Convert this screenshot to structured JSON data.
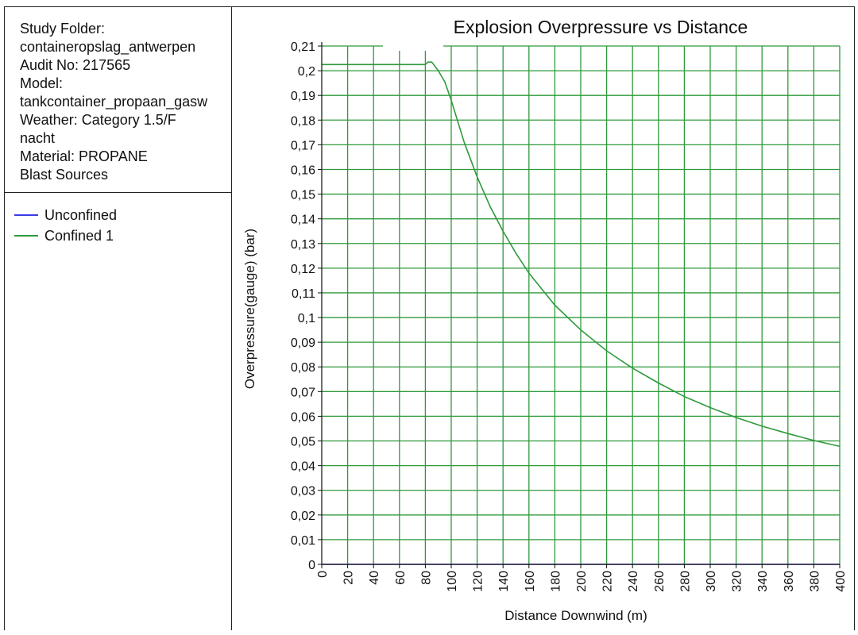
{
  "info": {
    "lines": [
      "Study Folder:",
      "containeropslag_antwerpen",
      "Audit No: 217565",
      "Model:",
      "tankcontainer_propaan_gasw",
      "Weather: Category 1.5/F",
      "nacht",
      "Material: PROPANE",
      "Blast Sources"
    ]
  },
  "legend": [
    {
      "label": "Unconfined",
      "color": "#3a3ae6"
    },
    {
      "label": "Confined 1",
      "color": "#2e9a3a"
    }
  ],
  "chart_data": {
    "type": "line",
    "title": "Explosion Overpressure vs Distance",
    "xlabel": "Distance Downwind (m)",
    "ylabel": "Overpressure(gauge) (bar)",
    "xlim": [
      0,
      400
    ],
    "ylim": [
      0,
      0.21
    ],
    "grid": true,
    "grid_color": "#2e9a3a",
    "xticks": [
      "0",
      "20",
      "40",
      "60",
      "80",
      "100",
      "120",
      "140",
      "160",
      "180",
      "200",
      "220",
      "240",
      "260",
      "280",
      "300",
      "320",
      "340",
      "360",
      "380",
      "400"
    ],
    "yticks": [
      "0",
      "0,01",
      "0,02",
      "0,03",
      "0,04",
      "0,05",
      "0,06",
      "0,07",
      "0,08",
      "0,09",
      "0,1",
      "0,11",
      "0,12",
      "0,13",
      "0,14",
      "0,15",
      "0,16",
      "0,17",
      "0,18",
      "0,19",
      "0,2",
      "0,21"
    ],
    "series": [
      {
        "name": "Unconfined",
        "color": "#3a3ae6",
        "x": [
          0,
          400
        ],
        "y": [
          0,
          0
        ]
      },
      {
        "name": "Confined 1",
        "color": "#2e9a3a",
        "x": [
          0,
          80,
          82,
          85,
          90,
          95,
          100,
          110,
          120,
          130,
          140,
          150,
          160,
          180,
          200,
          220,
          240,
          260,
          280,
          300,
          320,
          340,
          360,
          380,
          400
        ],
        "y": [
          0.2025,
          0.2025,
          0.2035,
          0.2035,
          0.2,
          0.1955,
          0.188,
          0.171,
          0.157,
          0.145,
          0.135,
          0.126,
          0.118,
          0.105,
          0.095,
          0.0865,
          0.0795,
          0.0735,
          0.068,
          0.0635,
          0.0595,
          0.056,
          0.053,
          0.0502,
          0.0478
        ]
      }
    ]
  }
}
